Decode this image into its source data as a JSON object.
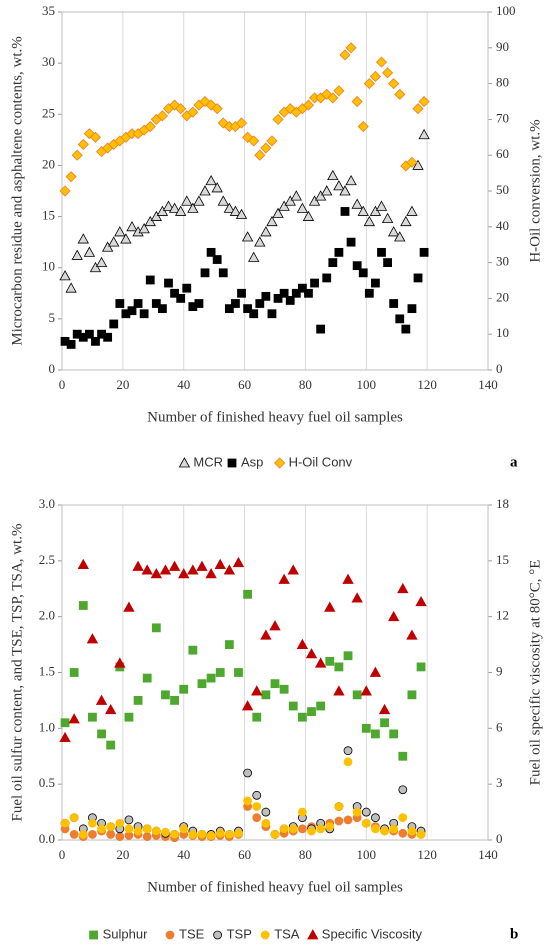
{
  "chart_data": [
    {
      "type": "scatter",
      "panel_label": "a",
      "xlabel": "Number of finished heavy fuel oil samples",
      "ylabel": "Microcarbon residue and asphaltene contents, wt.%",
      "y2label": "H-Oil conversion, wt.%",
      "xlim": [
        0,
        140
      ],
      "xticks": [
        0,
        20,
        40,
        60,
        80,
        100,
        120,
        140
      ],
      "ylim": [
        0,
        35
      ],
      "yticks": [
        0,
        5,
        10,
        15,
        20,
        25,
        30,
        35
      ],
      "y2lim": [
        0,
        100
      ],
      "y2ticks": [
        0,
        10,
        20,
        30,
        40,
        50,
        60,
        70,
        80,
        90,
        100
      ],
      "grid": "x",
      "x": [
        1,
        3,
        5,
        7,
        9,
        11,
        13,
        15,
        17,
        19,
        21,
        23,
        25,
        27,
        29,
        31,
        33,
        35,
        37,
        39,
        41,
        43,
        45,
        47,
        49,
        51,
        53,
        55,
        57,
        59,
        61,
        63,
        65,
        67,
        69,
        71,
        73,
        75,
        77,
        79,
        81,
        83,
        85,
        87,
        89,
        91,
        93,
        95,
        97,
        99,
        101,
        103,
        105,
        107,
        109,
        111,
        113,
        115,
        117,
        119
      ],
      "series": [
        {
          "name": "MCR",
          "marker": "triangle",
          "color": "#d9d9d9",
          "edgecolor": "#000000",
          "values": [
            9.2,
            8,
            11.2,
            12.8,
            11.5,
            10,
            10.5,
            12,
            12.5,
            13.5,
            12.8,
            14,
            13.5,
            13.8,
            14.5,
            15,
            15.5,
            16,
            15.8,
            15.5,
            16.5,
            15.8,
            16.5,
            17.5,
            18.5,
            17.8,
            16.5,
            15.8,
            15.5,
            15.2,
            13,
            11,
            12.5,
            13.5,
            14.5,
            15.3,
            16,
            16.5,
            17,
            15.8,
            15,
            16.5,
            17,
            17.5,
            19,
            18,
            17.5,
            18.5,
            16.2,
            15.5,
            14.5,
            15.5,
            16,
            14.8,
            13.5,
            13,
            14.5,
            15.5,
            20,
            23
          ]
        },
        {
          "name": "Asp",
          "marker": "square",
          "color": "#000000",
          "edgecolor": "#000000",
          "values": [
            2.8,
            2.5,
            3.5,
            3.2,
            3.5,
            2.8,
            3.5,
            3.2,
            4.5,
            6.5,
            5.5,
            5.8,
            6.5,
            5.5,
            8.8,
            6.5,
            6,
            8.5,
            7.5,
            7,
            8,
            6.2,
            6.5,
            9.5,
            11.5,
            10.8,
            9.5,
            6,
            6.5,
            7.5,
            6,
            5.5,
            6.5,
            7.2,
            5.5,
            7,
            7.5,
            6.8,
            7.5,
            8,
            7.5,
            8.5,
            4,
            9,
            10.5,
            11.5,
            15.5,
            12.5,
            10.2,
            9.5,
            7.5,
            8.5,
            11.5,
            10.5,
            6.5,
            5,
            4,
            6,
            9,
            11.5
          ]
        },
        {
          "name": "H-Oil Conv",
          "marker": "diamond",
          "color": "#ffc000",
          "edgecolor": "#ed7d31",
          "axis": "y2",
          "values": [
            50,
            54,
            60,
            63,
            66,
            65,
            61,
            62,
            63,
            64,
            65,
            66,
            66,
            67,
            68,
            70,
            71,
            73,
            74,
            73,
            71,
            72,
            74,
            75,
            74,
            73,
            69,
            68,
            68,
            69,
            65,
            64,
            60,
            62,
            64,
            70,
            72,
            73,
            72,
            73,
            74,
            76,
            76,
            77,
            76,
            78,
            88,
            90,
            75,
            68,
            80,
            82,
            86,
            83,
            80,
            77,
            57,
            58,
            73,
            75
          ]
        }
      ]
    },
    {
      "type": "scatter",
      "panel_label": "b",
      "xlabel": "Number of finished heavy fuel oil samples",
      "ylabel": "Fuel oil sulfur content, and TSE, TSP, TSA, wt.%",
      "y2label": "Fuel oil specific viscosity at 80°C, °E",
      "xlim": [
        0,
        140
      ],
      "xticks": [
        0,
        20,
        40,
        60,
        80,
        100,
        120,
        140
      ],
      "ylim": [
        0,
        3
      ],
      "yticks": [
        {
          "value": 0,
          "label": "0.0"
        },
        {
          "value": 0.5,
          "label": "0.5"
        },
        {
          "value": 1,
          "label": "1.0"
        },
        {
          "value": 1.5,
          "label": "1.5"
        },
        {
          "value": 2,
          "label": "2.0"
        },
        {
          "value": 2.5,
          "label": "2.5"
        },
        {
          "value": 3,
          "label": "3.0"
        }
      ],
      "y2lim": [
        0,
        18
      ],
      "y2ticks": [
        0,
        3,
        6,
        9,
        12,
        15,
        18
      ],
      "grid": "x",
      "x": [
        1,
        4,
        7,
        10,
        13,
        16,
        19,
        22,
        25,
        28,
        31,
        34,
        37,
        40,
        43,
        46,
        49,
        52,
        55,
        58,
        61,
        64,
        67,
        70,
        73,
        76,
        79,
        82,
        85,
        88,
        91,
        94,
        97,
        100,
        103,
        106,
        109,
        112,
        115,
        118
      ],
      "series": [
        {
          "name": "Sulphur",
          "marker": "square",
          "color": "#4ea72e",
          "edgecolor": "#4ea72e",
          "values": [
            1.05,
            1.5,
            2.1,
            1.1,
            0.95,
            0.85,
            1.55,
            1.1,
            1.25,
            1.45,
            1.9,
            1.3,
            1.25,
            1.35,
            1.7,
            1.4,
            1.45,
            1.5,
            1.75,
            1.5,
            2.2,
            1.1,
            1.3,
            1.4,
            1.35,
            1.2,
            1.1,
            1.15,
            1.2,
            1.6,
            1.55,
            1.65,
            1.3,
            1.0,
            0.95,
            1.05,
            0.95,
            0.75,
            1.3,
            1.55
          ]
        },
        {
          "name": "TSE",
          "marker": "circle",
          "color": "#ed7d31",
          "edgecolor": "#ed7d31",
          "values": [
            0.1,
            0.05,
            0.03,
            0.05,
            0.08,
            0.05,
            0.03,
            0.04,
            0.05,
            0.03,
            0.04,
            0.03,
            0.02,
            0.05,
            0.04,
            0.03,
            0.03,
            0.04,
            0.03,
            0.05,
            0.3,
            0.2,
            0.12,
            0.05,
            0.06,
            0.08,
            0.1,
            0.12,
            0.14,
            0.15,
            0.17,
            0.18,
            0.2,
            0.15,
            0.12,
            0.1,
            0.08,
            0.06,
            0.05,
            0.05
          ]
        },
        {
          "name": "TSP",
          "marker": "circle",
          "color": "#bfbfbf",
          "edgecolor": "#000000",
          "values": [
            0.15,
            0.2,
            0.1,
            0.2,
            0.15,
            0.12,
            0.1,
            0.18,
            0.12,
            0.1,
            0.08,
            0.06,
            0.05,
            0.12,
            0.08,
            0.05,
            0.05,
            0.08,
            0.05,
            0.08,
            0.6,
            0.4,
            0.25,
            0.05,
            0.1,
            0.12,
            0.2,
            0.1,
            0.15,
            0.1,
            0.3,
            0.8,
            0.3,
            0.25,
            0.2,
            0.1,
            0.15,
            0.45,
            0.12,
            0.08
          ]
        },
        {
          "name": "TSA",
          "marker": "circle",
          "color": "#ffc000",
          "edgecolor": "#ffc000",
          "values": [
            0.15,
            0.2,
            0.05,
            0.15,
            0.1,
            0.12,
            0.15,
            0.1,
            0.08,
            0.1,
            0.08,
            0.07,
            0.05,
            0.1,
            0.05,
            0.05,
            0.04,
            0.06,
            0.05,
            0.06,
            0.35,
            0.3,
            0.15,
            0.05,
            0.1,
            0.1,
            0.25,
            0.08,
            0.1,
            0.12,
            0.3,
            0.7,
            0.25,
            0.15,
            0.1,
            0.08,
            0.1,
            0.2,
            0.08,
            0.05
          ]
        },
        {
          "name": "Specific Viscosity",
          "marker": "triangle",
          "color": "#c00000",
          "edgecolor": "#c00000",
          "axis": "y2",
          "values": [
            5.5,
            6.5,
            14.8,
            10.8,
            7.5,
            7,
            9.5,
            12.5,
            14.7,
            14.5,
            14.3,
            14.5,
            14.7,
            14.3,
            14.5,
            14.7,
            14.3,
            14.8,
            14.5,
            14.9,
            7.2,
            8,
            11,
            11.5,
            14,
            14.5,
            10.5,
            10,
            9.5,
            12.5,
            8,
            14,
            13,
            8,
            9,
            7,
            12,
            13.5,
            11,
            12.8
          ]
        }
      ]
    }
  ]
}
